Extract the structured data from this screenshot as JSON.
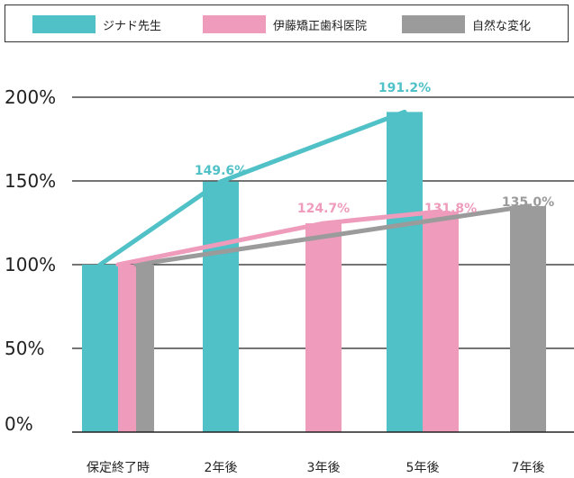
{
  "colors": {
    "teal": "#4fc1c7",
    "pink": "#ee9bbc",
    "gray": "#9b9b9b",
    "axis": "#222222"
  },
  "legend": [
    {
      "label": "ジナド先生",
      "color": "#4fc1c7"
    },
    {
      "label": "伊藤矯正歯科医院",
      "color": "#ee9bbc"
    },
    {
      "label": "自然な変化",
      "color": "#9b9b9b"
    }
  ],
  "chart_data": {
    "type": "bar",
    "categories": [
      "保定終了時",
      "2年後",
      "3年後",
      "5年後",
      "7年後"
    ],
    "ylim": [
      0,
      200
    ],
    "yticks": [
      "0%",
      "50%",
      "100%",
      "150%",
      "200%"
    ],
    "grid": true,
    "legend_position": "top",
    "series": [
      {
        "name": "ジナド先生",
        "color": "#4fc1c7",
        "points": [
          {
            "category": "保定終了時",
            "value": 100,
            "label": ""
          },
          {
            "category": "2年後",
            "value": 149.6,
            "label": "149.6%"
          },
          {
            "category": "5年後",
            "value": 191.2,
            "label": "191.2%"
          }
        ]
      },
      {
        "name": "伊藤矯正歯科医院",
        "color": "#ee9bbc",
        "points": [
          {
            "category": "保定終了時",
            "value": 100,
            "label": ""
          },
          {
            "category": "3年後",
            "value": 124.7,
            "label": "124.7%"
          },
          {
            "category": "5年後",
            "value": 131.8,
            "label": "131.8%"
          }
        ]
      },
      {
        "name": "自然な変化",
        "color": "#9b9b9b",
        "points": [
          {
            "category": "保定終了時",
            "value": 100,
            "label": ""
          },
          {
            "category": "7年後",
            "value": 135.0,
            "label": "135.0%"
          }
        ]
      }
    ]
  }
}
